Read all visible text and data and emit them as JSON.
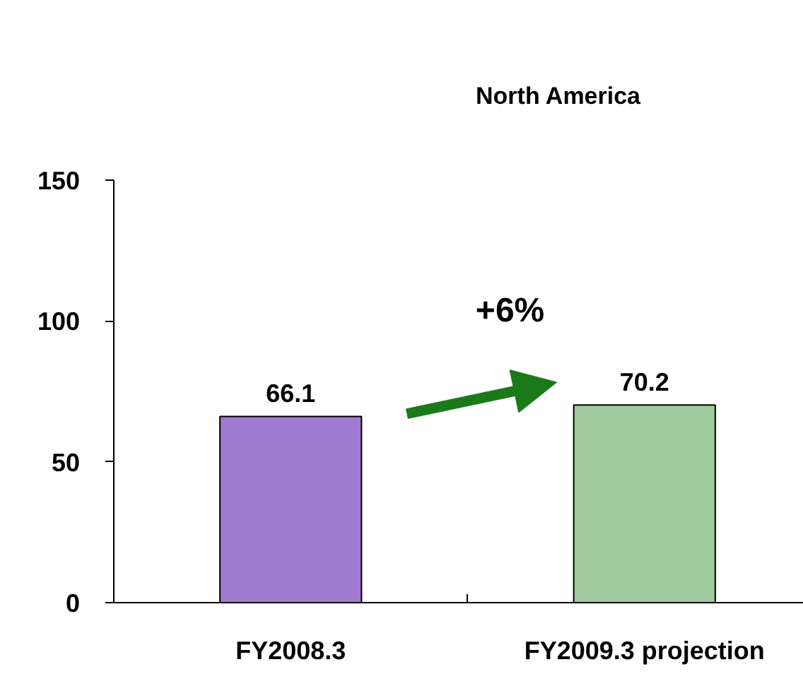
{
  "chart_data": {
    "type": "bar",
    "title": "North America",
    "categories": [
      "FY2008.3",
      "FY2009.3 projection"
    ],
    "values": [
      66.1,
      70.2
    ],
    "colors": [
      "#a07ad0",
      "#9fcb9f"
    ],
    "ylim": [
      0,
      150
    ],
    "yticks": [
      0,
      50,
      100,
      150
    ],
    "grid": false,
    "data_labels": true,
    "annotations": [
      "+6%"
    ]
  }
}
